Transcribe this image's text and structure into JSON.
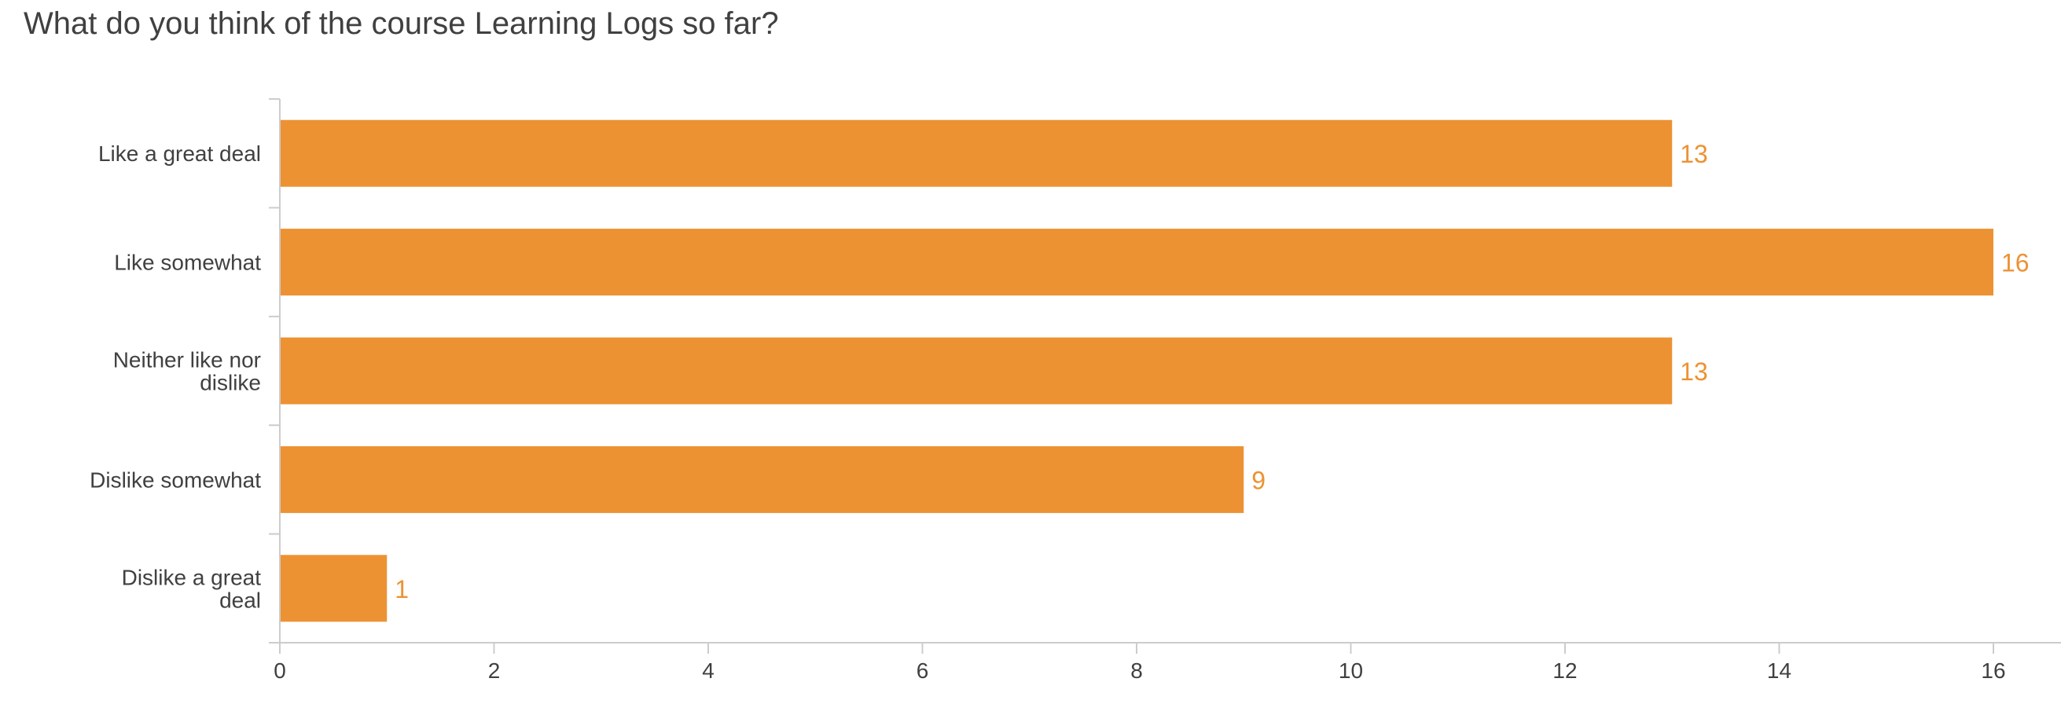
{
  "chart_data": {
    "type": "bar",
    "orientation": "horizontal",
    "title": "What do you think of the course Learning Logs so far?",
    "categories": [
      "Like a great deal",
      "Like somewhat",
      "Neither like nor dislike",
      "Dislike somewhat",
      "Dislike a great deal"
    ],
    "values": [
      13,
      16,
      13,
      9,
      1
    ],
    "xlim": [
      0,
      16
    ],
    "xticks": [
      0,
      2,
      4,
      6,
      8,
      10,
      12,
      14,
      16
    ],
    "grid": false,
    "data_labels": true,
    "bar_color": "#EC9233",
    "label_color": "#EC9233",
    "axis_color": "#CCCCCC",
    "text_color": "#404040"
  }
}
